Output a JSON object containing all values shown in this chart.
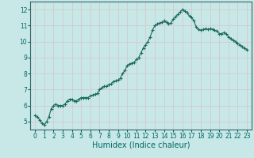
{
  "title": "",
  "xlabel": "Humidex (Indice chaleur)",
  "ylabel": "",
  "bg_color": "#c8e8e8",
  "grid_color": "#d4c8c8",
  "line_color": "#1a6b5a",
  "marker_color": "#1a6b5a",
  "xlim": [
    -0.5,
    23.5
  ],
  "ylim": [
    4.5,
    12.5
  ],
  "yticks": [
    5,
    6,
    7,
    8,
    9,
    10,
    11,
    12
  ],
  "xticks": [
    0,
    1,
    2,
    3,
    4,
    5,
    6,
    7,
    8,
    9,
    10,
    11,
    12,
    13,
    14,
    15,
    16,
    17,
    18,
    19,
    20,
    21,
    22,
    23
  ],
  "x": [
    0.0,
    0.25,
    0.5,
    0.75,
    1.0,
    1.25,
    1.5,
    1.75,
    2.0,
    2.25,
    2.5,
    2.75,
    3.0,
    3.25,
    3.5,
    3.75,
    4.0,
    4.25,
    4.5,
    4.75,
    5.0,
    5.25,
    5.5,
    5.75,
    6.0,
    6.25,
    6.5,
    6.75,
    7.0,
    7.25,
    7.5,
    7.75,
    8.0,
    8.25,
    8.5,
    8.75,
    9.0,
    9.25,
    9.5,
    9.75,
    10.0,
    10.25,
    10.5,
    10.75,
    11.0,
    11.25,
    11.5,
    11.75,
    12.0,
    12.25,
    12.5,
    12.75,
    13.0,
    13.25,
    13.5,
    13.75,
    14.0,
    14.25,
    14.5,
    14.75,
    15.0,
    15.25,
    15.5,
    15.75,
    16.0,
    16.25,
    16.5,
    16.75,
    17.0,
    17.25,
    17.5,
    17.75,
    18.0,
    18.25,
    18.5,
    18.75,
    19.0,
    19.25,
    19.5,
    19.75,
    20.0,
    20.25,
    20.5,
    20.75,
    21.0,
    21.25,
    21.5,
    21.75,
    22.0,
    22.25,
    22.5,
    22.75,
    23.0
  ],
  "y": [
    5.4,
    5.3,
    5.1,
    4.9,
    4.8,
    5.0,
    5.3,
    5.8,
    6.0,
    6.1,
    6.0,
    6.0,
    6.0,
    6.1,
    6.3,
    6.4,
    6.4,
    6.3,
    6.3,
    6.4,
    6.5,
    6.5,
    6.5,
    6.5,
    6.6,
    6.65,
    6.7,
    6.75,
    7.0,
    7.1,
    7.2,
    7.2,
    7.3,
    7.35,
    7.5,
    7.55,
    7.6,
    7.7,
    8.0,
    8.2,
    8.5,
    8.6,
    8.65,
    8.7,
    8.9,
    9.0,
    9.3,
    9.6,
    9.8,
    10.0,
    10.3,
    10.7,
    11.0,
    11.1,
    11.15,
    11.2,
    11.3,
    11.2,
    11.1,
    11.15,
    11.4,
    11.55,
    11.7,
    11.85,
    12.0,
    11.9,
    11.8,
    11.6,
    11.5,
    11.3,
    10.9,
    10.75,
    10.7,
    10.75,
    10.8,
    10.75,
    10.8,
    10.75,
    10.7,
    10.65,
    10.5,
    10.5,
    10.55,
    10.5,
    10.3,
    10.2,
    10.1,
    10.0,
    9.9,
    9.8,
    9.7,
    9.6,
    9.5
  ]
}
